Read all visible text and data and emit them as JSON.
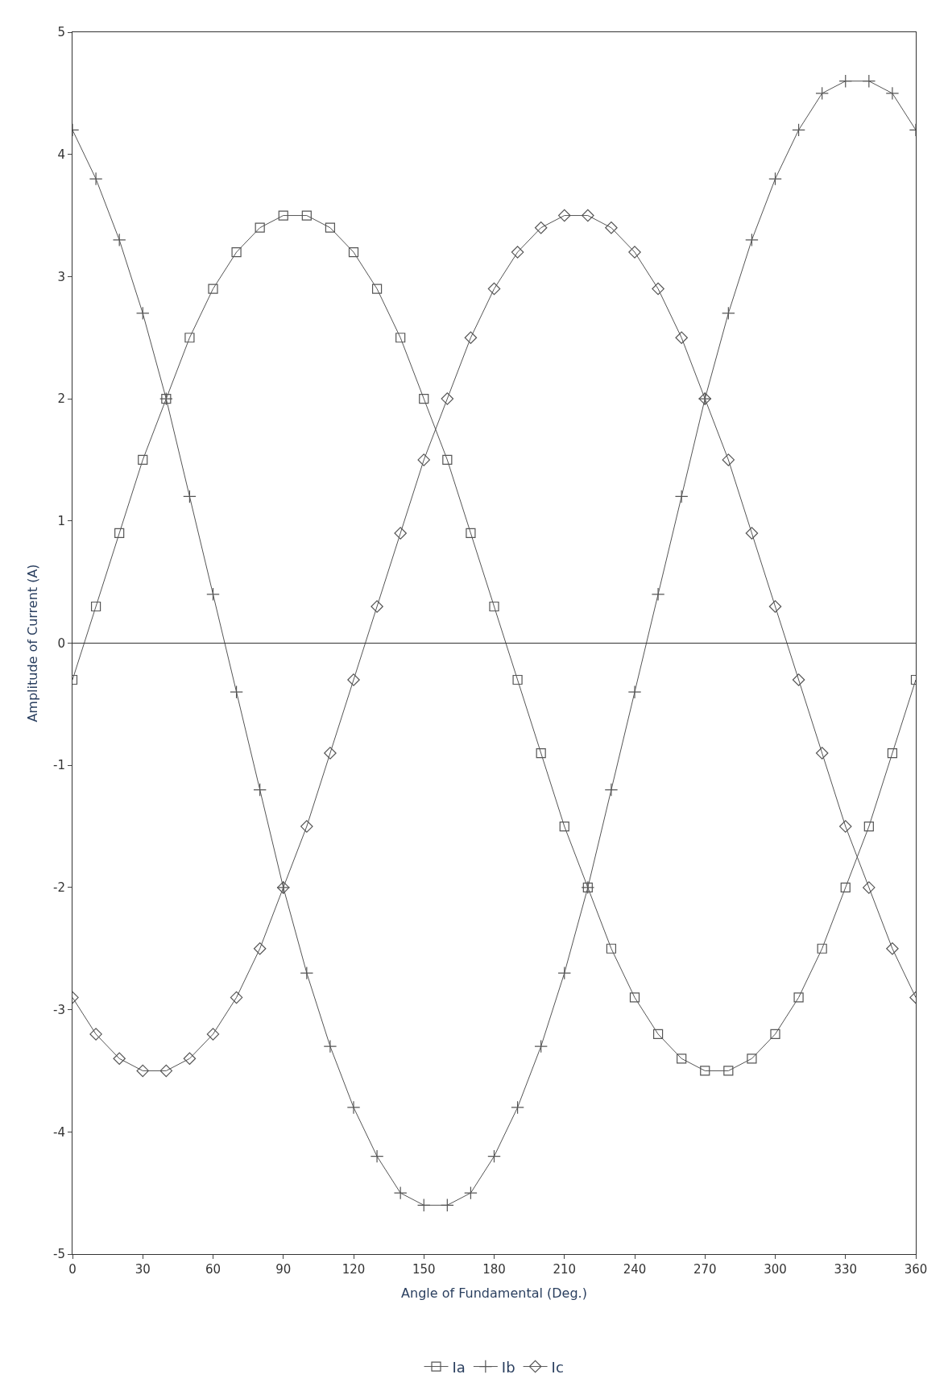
{
  "chart_data": {
    "type": "line",
    "xlabel": "Angle of Fundamental (Deg.)",
    "ylabel": "Amplitude of Current (A)",
    "x": [
      0,
      10,
      20,
      30,
      40,
      50,
      60,
      70,
      80,
      90,
      100,
      110,
      120,
      130,
      140,
      150,
      160,
      170,
      180,
      190,
      200,
      210,
      220,
      230,
      240,
      250,
      260,
      270,
      280,
      290,
      300,
      310,
      320,
      330,
      340,
      350,
      360
    ],
    "series": [
      {
        "name": "Ia",
        "color": "#555555",
        "marker": "square",
        "values": [
          -0.3,
          0.3,
          0.9,
          1.5,
          2.0,
          2.5,
          2.9,
          3.2,
          3.4,
          3.5,
          3.5,
          3.4,
          3.2,
          2.9,
          2.5,
          2.0,
          1.5,
          0.9,
          0.3,
          -0.3,
          -0.9,
          -1.5,
          -2.0,
          -2.5,
          -2.9,
          -3.2,
          -3.4,
          -3.5,
          -3.5,
          -3.4,
          -3.2,
          -2.9,
          -2.5,
          -2.0,
          -1.5,
          -0.9,
          -0.3
        ]
      },
      {
        "name": "Ib",
        "color": "#555555",
        "marker": "cross",
        "values": [
          4.2,
          3.8,
          3.3,
          2.7,
          2.0,
          1.2,
          0.4,
          -0.4,
          -1.2,
          -2.0,
          -2.7,
          -3.3,
          -3.8,
          -4.2,
          -4.5,
          -4.6,
          -4.6,
          -4.5,
          -4.2,
          -3.8,
          -3.3,
          -2.7,
          -2.0,
          -1.2,
          -0.4,
          0.4,
          1.2,
          2.0,
          2.7,
          3.3,
          3.8,
          4.2,
          4.5,
          4.6,
          4.6,
          4.5,
          4.2
        ]
      },
      {
        "name": "Ic",
        "color": "#555555",
        "marker": "diamond",
        "values": [
          -2.9,
          -3.2,
          -3.4,
          -3.5,
          -3.5,
          -3.4,
          -3.2,
          -2.9,
          -2.5,
          -2.0,
          -1.5,
          -0.9,
          -0.3,
          0.3,
          0.9,
          1.5,
          2.0,
          2.5,
          2.9,
          3.2,
          3.4,
          3.5,
          3.5,
          3.4,
          3.2,
          2.9,
          2.5,
          2.0,
          1.5,
          0.9,
          0.3,
          -0.3,
          -0.9,
          -1.5,
          -2.0,
          -2.5,
          -2.9
        ]
      }
    ],
    "xlim": [
      0,
      360
    ],
    "xticks": [
      0,
      30,
      60,
      90,
      120,
      150,
      180,
      210,
      240,
      270,
      300,
      330,
      360
    ],
    "ylim": [
      -5,
      5
    ],
    "yticks": [
      -5,
      -4,
      -3,
      -2,
      -1,
      0,
      1,
      2,
      3,
      4,
      5
    ],
    "ref_lines": [
      {
        "axis": "y",
        "value": 0,
        "color": "#333333"
      }
    ],
    "legend": "bottom",
    "line_style": "solid"
  }
}
